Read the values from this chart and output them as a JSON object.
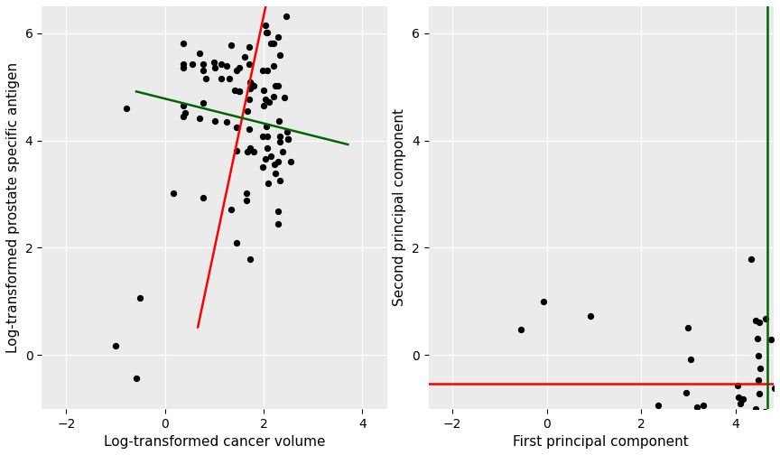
{
  "background_color": "#EBEBEB",
  "grid_color": "white",
  "point_color": "black",
  "point_size": 18,
  "red_line_color": "red",
  "green_line_color": "darkgreen",
  "left_xlabel": "Log-transformed cancer volume",
  "left_ylabel": "Log-transformed prostate specific antigen",
  "right_xlabel": "First principal component",
  "right_ylabel": "Second principal component",
  "left_xlim": [
    -2.5,
    4.5
  ],
  "left_ylim": [
    -1.0,
    6.5
  ],
  "right_xlim": [
    -2.5,
    4.8
  ],
  "right_ylim": [
    -1.0,
    6.5
  ],
  "left_xticks": [
    -2,
    0,
    2,
    4
  ],
  "left_yticks": [
    0,
    2,
    4,
    6
  ],
  "right_xticks": [
    -2,
    0,
    2,
    4
  ],
  "right_yticks": [
    0,
    2,
    4,
    6
  ],
  "tick_fontsize": 10,
  "label_fontsize": 11,
  "line_width": 1.8
}
